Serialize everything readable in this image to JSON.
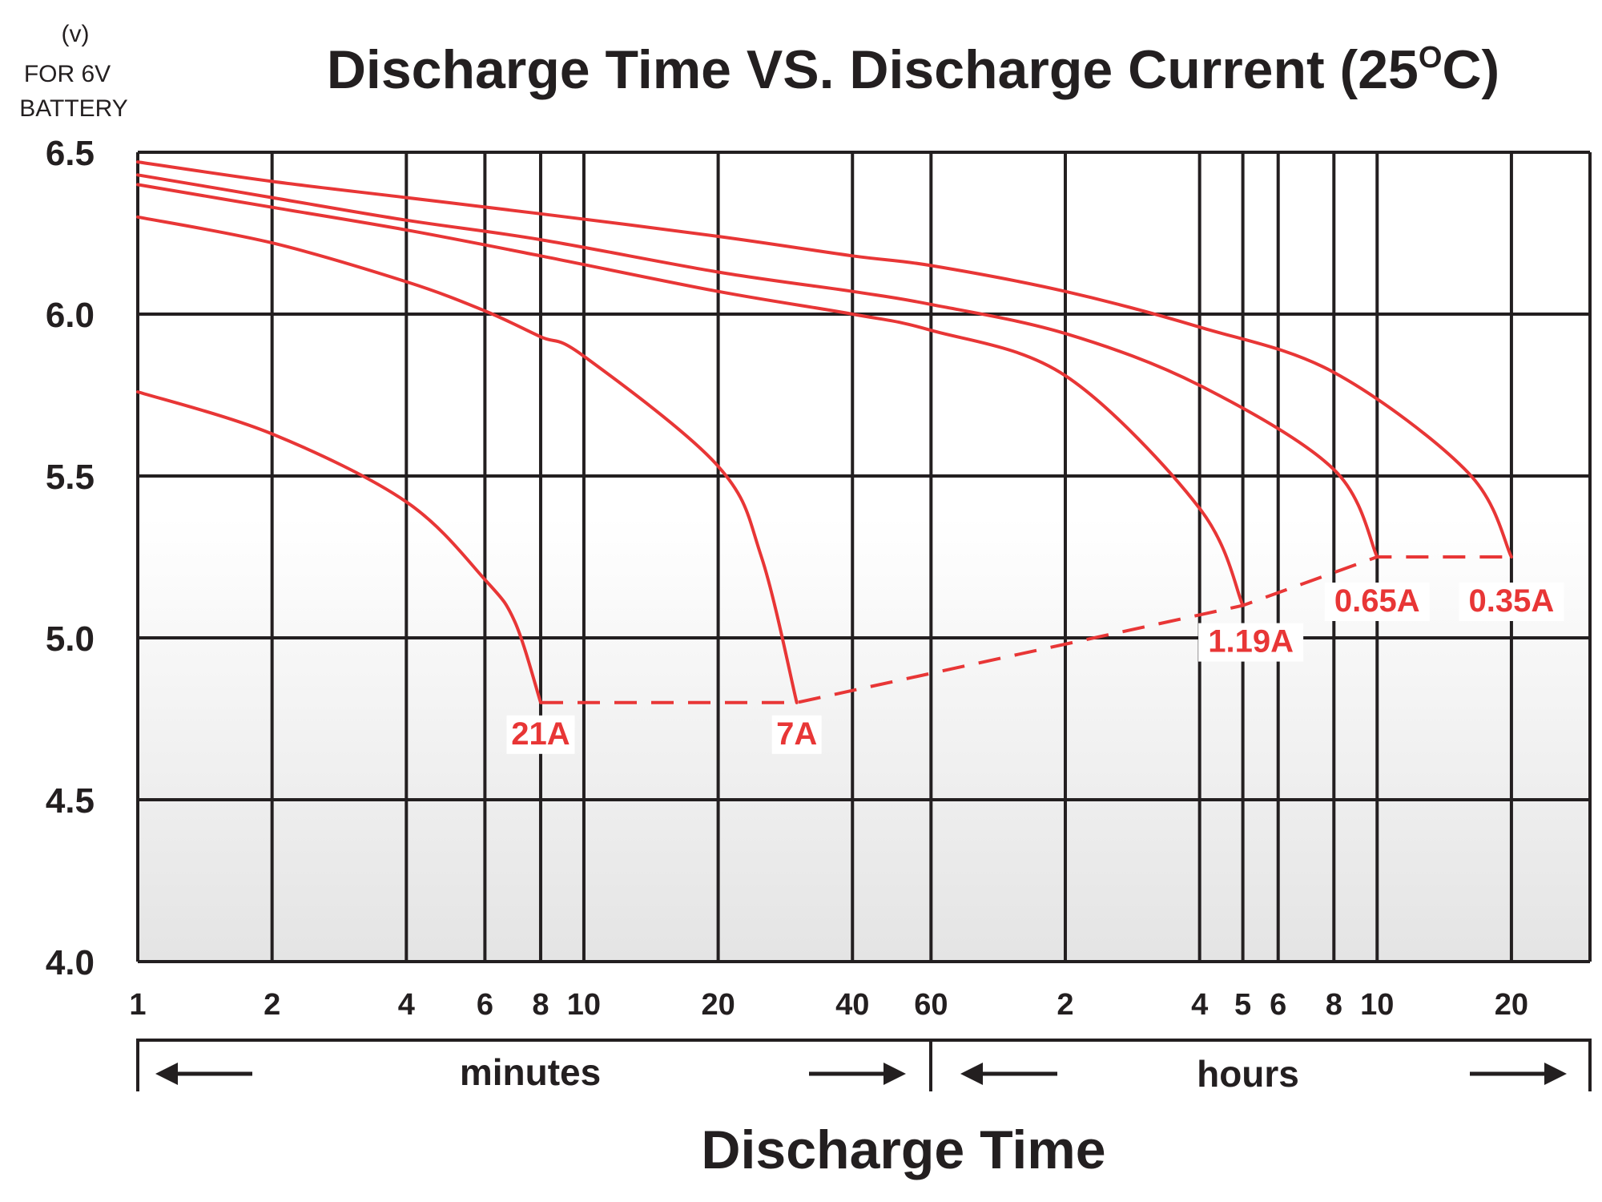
{
  "chart_data": {
    "type": "line",
    "title_main": "Discharge Time VS. Discharge Current (25",
    "title_sup": "O",
    "title_end": "C)",
    "ylabel_lines": [
      "(v)",
      "FOR 6V",
      "BATTERY"
    ],
    "xlabel": "Discharge Time",
    "x_scale": "log",
    "x_unit_base": "minutes",
    "xlim_minutes": [
      1,
      1800
    ],
    "ylim": [
      4.0,
      6.5
    ],
    "y_ticks": [
      "4.0",
      "4.5",
      "5.0",
      "5.5",
      "6.0",
      "6.5"
    ],
    "x_ticks": [
      {
        "label": "1",
        "min": 1
      },
      {
        "label": "2",
        "min": 2
      },
      {
        "label": "4",
        "min": 4
      },
      {
        "label": "6",
        "min": 6
      },
      {
        "label": "8",
        "min": 8
      },
      {
        "label": "10",
        "min": 10
      },
      {
        "label": "20",
        "min": 20
      },
      {
        "label": "40",
        "min": 40
      },
      {
        "label": "60",
        "min": 60
      },
      {
        "label": "2",
        "min": 120
      },
      {
        "label": "4",
        "min": 240
      },
      {
        "label": "5",
        "min": 300
      },
      {
        "label": "6",
        "min": 360
      },
      {
        "label": "8",
        "min": 480
      },
      {
        "label": "10",
        "min": 600
      },
      {
        "label": "20",
        "min": 1200
      }
    ],
    "x_segments": [
      {
        "label": "minutes",
        "from_min": 1,
        "to_min": 60
      },
      {
        "label": "hours",
        "from_min": 60,
        "to_min": 1800
      }
    ],
    "series": [
      {
        "name": "21A",
        "points": [
          [
            1,
            5.76
          ],
          [
            2,
            5.63
          ],
          [
            4,
            5.42
          ],
          [
            6,
            5.18
          ],
          [
            7,
            5.05
          ],
          [
            8,
            4.8
          ]
        ]
      },
      {
        "name": "7A",
        "points": [
          [
            1,
            6.3
          ],
          [
            2,
            6.22
          ],
          [
            4,
            6.1
          ],
          [
            6,
            6.01
          ],
          [
            8,
            5.93
          ],
          [
            10,
            5.87
          ],
          [
            20,
            5.53
          ],
          [
            25,
            5.25
          ],
          [
            30,
            4.8
          ]
        ]
      },
      {
        "name": "1.19A",
        "points": [
          [
            1,
            6.4
          ],
          [
            2,
            6.33
          ],
          [
            4,
            6.26
          ],
          [
            8,
            6.18
          ],
          [
            20,
            6.07
          ],
          [
            40,
            6.0
          ],
          [
            60,
            5.95
          ],
          [
            120,
            5.81
          ],
          [
            240,
            5.4
          ],
          [
            300,
            5.1
          ]
        ]
      },
      {
        "name": "0.65A",
        "points": [
          [
            1,
            6.43
          ],
          [
            2,
            6.36
          ],
          [
            4,
            6.29
          ],
          [
            8,
            6.23
          ],
          [
            20,
            6.13
          ],
          [
            40,
            6.07
          ],
          [
            60,
            6.03
          ],
          [
            120,
            5.94
          ],
          [
            240,
            5.78
          ],
          [
            480,
            5.52
          ],
          [
            600,
            5.25
          ]
        ]
      },
      {
        "name": "0.35A",
        "points": [
          [
            1,
            6.47
          ],
          [
            2,
            6.41
          ],
          [
            4,
            6.36
          ],
          [
            8,
            6.31
          ],
          [
            20,
            6.24
          ],
          [
            40,
            6.18
          ],
          [
            60,
            6.15
          ],
          [
            120,
            6.07
          ],
          [
            240,
            5.96
          ],
          [
            480,
            5.82
          ],
          [
            960,
            5.51
          ],
          [
            1200,
            5.25
          ]
        ]
      }
    ],
    "cutoff_line": {
      "style": "dashed",
      "points": [
        [
          8,
          4.8
        ],
        [
          30,
          4.8
        ],
        [
          300,
          5.1
        ],
        [
          600,
          5.25
        ],
        [
          1200,
          5.25
        ]
      ]
    },
    "colors": {
      "series": "#e83636",
      "grid": "#231f20",
      "text": "#231f20"
    },
    "grid": true,
    "legend": "none"
  }
}
